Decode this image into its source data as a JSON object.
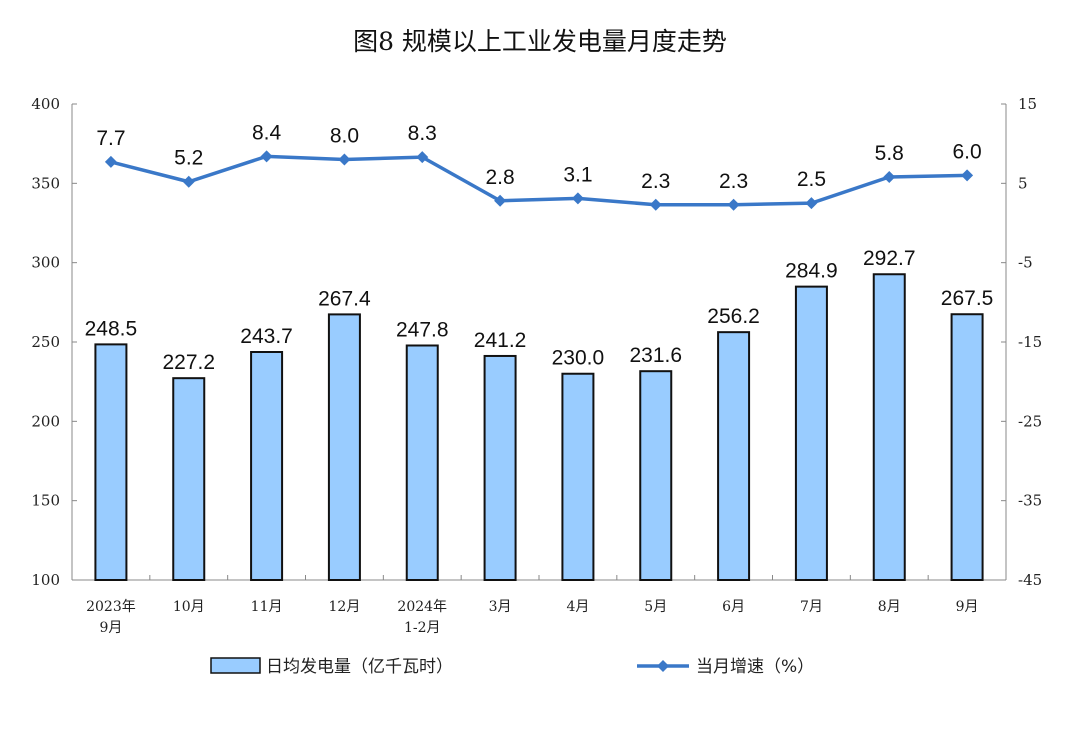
{
  "chart_data": {
    "type": "bar+line",
    "title": "图8  规模以上工业发电量月度走势",
    "categories": [
      [
        "2023年",
        "9月"
      ],
      [
        "10月"
      ],
      [
        "11月"
      ],
      [
        "12月"
      ],
      [
        "2024年",
        "1-2月"
      ],
      [
        "3月"
      ],
      [
        "4月"
      ],
      [
        "5月"
      ],
      [
        "6月"
      ],
      [
        "7月"
      ],
      [
        "8月"
      ],
      [
        "9月"
      ]
    ],
    "series": [
      {
        "name": "日均发电量（亿千瓦时）",
        "type": "bar",
        "axis": "left",
        "color": "#99CCFF",
        "values": [
          248.5,
          227.2,
          243.7,
          267.4,
          247.8,
          241.2,
          230.0,
          231.6,
          256.2,
          284.9,
          292.7,
          267.5
        ]
      },
      {
        "name": "当月增速（%）",
        "type": "line",
        "axis": "right",
        "color": "#3A78C8",
        "values": [
          7.7,
          5.2,
          8.4,
          8.0,
          8.3,
          2.8,
          3.1,
          2.3,
          2.3,
          2.5,
          5.8,
          6.0
        ]
      }
    ],
    "ylim_left": [
      100,
      400
    ],
    "yticks_left": [
      100,
      150,
      200,
      250,
      300,
      350,
      400
    ],
    "ylim_right": [
      -45,
      15
    ],
    "yticks_right": [
      -45,
      -35,
      -25,
      -15,
      -5,
      5,
      15
    ],
    "grid": false,
    "legend": "bottom"
  }
}
